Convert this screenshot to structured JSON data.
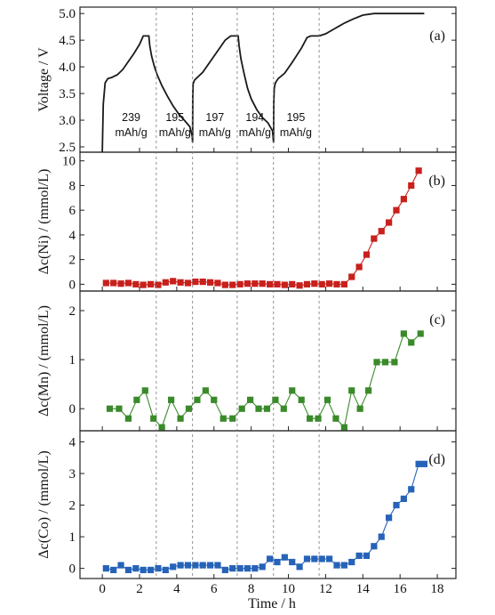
{
  "x_axis": {
    "label": "Time / h",
    "ticks": [
      0,
      2,
      4,
      6,
      8,
      10,
      12,
      14,
      16,
      18
    ],
    "range": [
      -1.2,
      19.0
    ]
  },
  "vlines": [
    2.9,
    4.85,
    7.25,
    9.2,
    11.65
  ],
  "colors": {
    "ni": "#c8201c",
    "mn": "#3a8a2a",
    "co": "#2663b8",
    "voltage": "#1a1a1a",
    "axis": "#222222",
    "guide": "#777777"
  },
  "chart_data": [
    {
      "type": "line",
      "panel": "(a)",
      "ylabel": "Voltage / V",
      "ylim": [
        2.4,
        5.12
      ],
      "yticks": [
        2.5,
        3.0,
        3.5,
        4.0,
        4.5,
        5.0
      ],
      "ytick_labels": [
        "2.5",
        "3.0",
        "3.5",
        "4.0",
        "4.5",
        "5.0"
      ],
      "series": [
        {
          "x": [
            0.0,
            0.05,
            0.15,
            0.3,
            0.5,
            0.8,
            1.1,
            1.4,
            1.7,
            2.0,
            2.2,
            2.45,
            2.5,
            2.55,
            2.65,
            2.8,
            2.95,
            3.2,
            3.5,
            3.8,
            4.1,
            4.4,
            4.7,
            4.83,
            4.85,
            4.86,
            4.88,
            4.95,
            5.1,
            5.4,
            5.8,
            6.2,
            6.6,
            6.9,
            7.1,
            7.3,
            7.35,
            7.45,
            7.6,
            7.8,
            8.0,
            8.3,
            8.6,
            8.9,
            9.15,
            9.2,
            9.21,
            9.24,
            9.3,
            9.45,
            9.8,
            10.2,
            10.7,
            11.0,
            11.2,
            11.5,
            11.65,
            12.0,
            12.5,
            13.0,
            13.5,
            14.0,
            14.6,
            15.0,
            15.5,
            16.0,
            16.5,
            17.0,
            17.3
          ],
          "y": [
            2.4,
            3.3,
            3.7,
            3.78,
            3.8,
            3.85,
            3.95,
            4.1,
            4.25,
            4.42,
            4.58,
            4.58,
            4.58,
            4.4,
            4.2,
            4.0,
            3.85,
            3.65,
            3.45,
            3.27,
            3.12,
            3.0,
            2.88,
            2.7,
            2.58,
            3.45,
            3.68,
            3.75,
            3.8,
            3.9,
            4.1,
            4.3,
            4.5,
            4.58,
            4.58,
            4.58,
            4.4,
            4.15,
            3.9,
            3.6,
            3.4,
            3.2,
            3.05,
            2.95,
            2.8,
            2.58,
            3.3,
            3.6,
            3.7,
            3.78,
            3.88,
            4.08,
            4.35,
            4.55,
            4.58,
            4.58,
            4.58,
            4.62,
            4.72,
            4.82,
            4.9,
            4.97,
            5.0,
            5.0,
            5.0,
            5.0,
            5.0,
            5.0,
            5.0
          ]
        }
      ],
      "annotations": [
        {
          "value": "239",
          "unit": "mAh/g",
          "x": 1.55
        },
        {
          "value": "195",
          "unit": "mAh/g",
          "x": 3.9
        },
        {
          "value": "197",
          "unit": "mAh/g",
          "x": 6.05
        },
        {
          "value": "194",
          "unit": "mAh/g",
          "x": 8.2
        },
        {
          "value": "195",
          "unit": "mAh/g",
          "x": 10.4
        }
      ]
    },
    {
      "type": "line",
      "panel": "(b)",
      "ylabel": "Δc(Ni) / (mmol/L)",
      "ylim": [
        -0.55,
        10.7
      ],
      "yticks": [
        0,
        2,
        4,
        6,
        8,
        10
      ],
      "ytick_labels": [
        "0",
        "2",
        "4",
        "6",
        "8",
        "10"
      ],
      "series": [
        {
          "x": [
            0.2,
            0.6,
            1.0,
            1.4,
            1.8,
            2.2,
            2.6,
            3.0,
            3.4,
            3.8,
            4.2,
            4.6,
            5.0,
            5.4,
            5.8,
            6.2,
            6.6,
            7.0,
            7.4,
            7.8,
            8.2,
            8.6,
            9.0,
            9.4,
            9.8,
            10.2,
            10.6,
            11.0,
            11.4,
            11.8,
            12.2,
            12.6,
            13.0,
            13.4,
            13.8,
            14.2,
            14.6,
            15.0,
            15.4,
            15.8,
            16.2,
            16.6,
            17.0
          ],
          "y": [
            0.1,
            0.1,
            0.05,
            0.1,
            0.0,
            -0.05,
            0.0,
            -0.05,
            0.15,
            0.25,
            0.15,
            0.1,
            0.2,
            0.2,
            0.15,
            0.1,
            -0.05,
            -0.05,
            0.0,
            0.05,
            0.05,
            0.05,
            0.0,
            0.0,
            -0.05,
            0.0,
            -0.1,
            0.0,
            0.05,
            0.0,
            0.05,
            0.0,
            0.0,
            0.6,
            1.4,
            2.4,
            3.7,
            4.3,
            5.0,
            6.0,
            6.9,
            8.0,
            9.2
          ]
        }
      ]
    },
    {
      "type": "line",
      "panel": "(c)",
      "ylabel": "Δc(Mn) / (mmol/L)",
      "ylim": [
        -0.45,
        2.4
      ],
      "yticks": [
        0,
        1,
        2
      ],
      "ytick_labels": [
        "0",
        "1",
        "2"
      ],
      "series": [
        {
          "x": [
            0.4,
            0.9,
            1.4,
            1.85,
            2.3,
            2.75,
            3.2,
            3.7,
            4.2,
            4.65,
            5.1,
            5.55,
            6.0,
            6.5,
            7.0,
            7.5,
            7.95,
            8.4,
            8.85,
            9.3,
            9.75,
            10.2,
            10.7,
            11.15,
            11.6,
            12.1,
            12.55,
            13.0,
            13.4,
            13.85,
            14.3,
            14.75,
            15.2,
            15.7,
            16.2,
            16.6,
            17.1
          ],
          "y": [
            0.0,
            0.0,
            -0.2,
            0.18,
            0.37,
            -0.2,
            -0.38,
            0.18,
            -0.2,
            0.0,
            0.18,
            0.37,
            0.18,
            -0.2,
            -0.2,
            0.0,
            0.18,
            0.0,
            0.0,
            0.18,
            0.0,
            0.37,
            0.18,
            -0.2,
            -0.2,
            0.18,
            -0.2,
            -0.38,
            0.37,
            0.0,
            0.37,
            0.95,
            0.95,
            0.95,
            1.53,
            1.35,
            1.53
          ]
        }
      ]
    },
    {
      "type": "line",
      "panel": "(d)",
      "ylabel": "Δc(Co) / (mmol/L)",
      "ylim": [
        -0.32,
        4.35
      ],
      "yticks": [
        0,
        1,
        2,
        3,
        4
      ],
      "ytick_labels": [
        "0",
        "1",
        "2",
        "3",
        "4"
      ],
      "series": [
        {
          "x": [
            0.2,
            0.6,
            1.0,
            1.4,
            1.8,
            2.2,
            2.6,
            3.0,
            3.4,
            3.8,
            4.2,
            4.6,
            5.0,
            5.4,
            5.8,
            6.2,
            6.6,
            7.0,
            7.4,
            7.8,
            8.2,
            8.6,
            9.0,
            9.4,
            9.8,
            10.2,
            10.6,
            11.0,
            11.4,
            11.8,
            12.2,
            12.6,
            13.0,
            13.4,
            13.8,
            14.2,
            14.6,
            15.0,
            15.4,
            15.8,
            16.2,
            16.6,
            17.0,
            17.3
          ],
          "y": [
            0.0,
            -0.05,
            0.1,
            -0.05,
            0.0,
            -0.05,
            -0.05,
            0.0,
            -0.05,
            0.05,
            0.1,
            0.1,
            0.1,
            0.1,
            0.1,
            0.1,
            -0.05,
            0.0,
            0.0,
            0.0,
            0.0,
            0.05,
            0.3,
            0.2,
            0.35,
            0.2,
            0.05,
            0.3,
            0.3,
            0.3,
            0.3,
            0.1,
            0.1,
            0.2,
            0.4,
            0.4,
            0.7,
            1.0,
            1.6,
            2.0,
            2.2,
            2.5,
            3.3,
            3.3
          ]
        }
      ]
    }
  ]
}
